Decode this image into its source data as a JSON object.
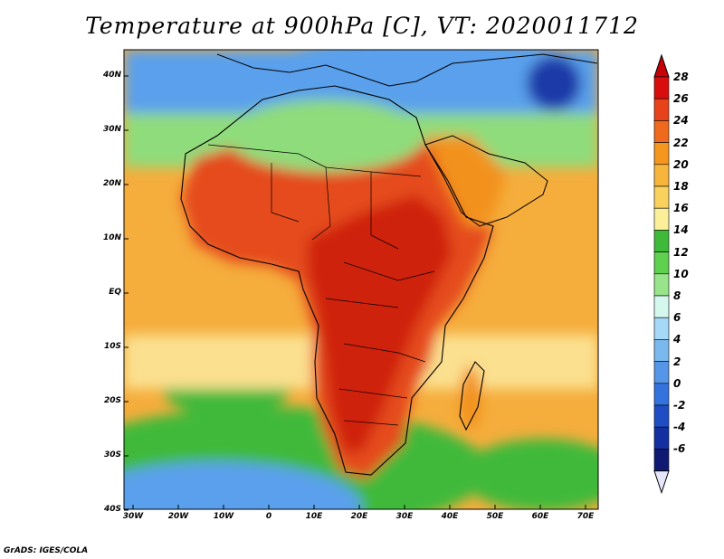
{
  "title": "Temperature at 900hPa [C], VT: 2020011712",
  "footer": "GrADS: IGES/COLA",
  "map": {
    "lon_ticks": [
      "30W",
      "20W",
      "10W",
      "0",
      "10E",
      "20E",
      "30E",
      "40E",
      "50E",
      "60E",
      "70E"
    ],
    "lat_ticks": [
      "40N",
      "30N",
      "20N",
      "10N",
      "EQ",
      "10S",
      "20S",
      "30S",
      "40S"
    ]
  },
  "colorbar": {
    "labels": [
      "28",
      "26",
      "24",
      "22",
      "20",
      "18",
      "16",
      "14",
      "12",
      "10",
      "8",
      "6",
      "4",
      "2",
      "0",
      "-2",
      "-4",
      "-6"
    ],
    "colors": [
      "#d80e0e",
      "#e8421a",
      "#f06a1e",
      "#f5961f",
      "#f7b53c",
      "#f9d25e",
      "#fbef9a",
      "#3fb93a",
      "#5fd050",
      "#97e48a",
      "#d4f7ee",
      "#a6d8f8",
      "#7ab9ee",
      "#5596e8",
      "#3472de",
      "#1f4dc4",
      "#1330a0",
      "#0f1b72"
    ],
    "under_color": "#e6e6fa",
    "over_color": "#c8000a"
  },
  "features": {
    "land_color": "#e54b1c",
    "hot_core_color": "#cf2211",
    "arabia_color": "#f2921f",
    "ocean_warm_color": "#f5ad3c",
    "ocean_mid_color": "#fbe08f",
    "cool_green_color": "#3fb93a",
    "light_green_color": "#8fdc7c",
    "cold_blue_color": "#5aa0ec",
    "deep_blue_color": "#1a3aa8"
  }
}
